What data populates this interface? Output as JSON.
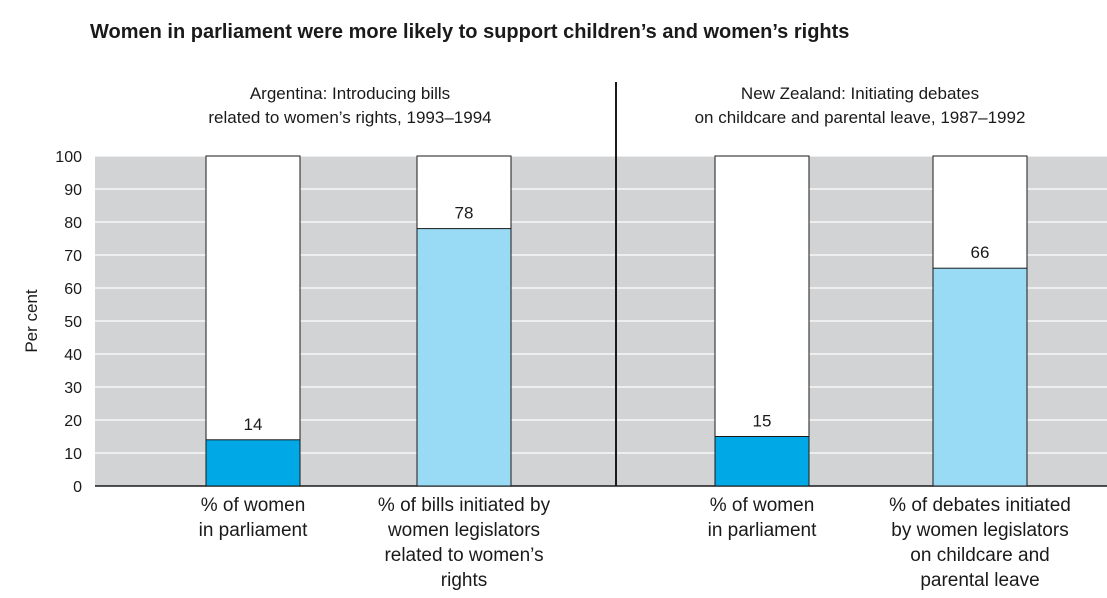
{
  "chart_data": {
    "type": "bar",
    "title": "Women in parliament were more likely to support children’s and women’s rights",
    "ylabel": "Per cent",
    "ylim": [
      0,
      100
    ],
    "yticks": [
      0,
      10,
      20,
      30,
      40,
      50,
      60,
      70,
      80,
      90,
      100
    ],
    "ytick_labels": [
      "0",
      "10",
      "20",
      "30",
      "40",
      "50",
      "60",
      "70",
      "80",
      "90",
      "100"
    ],
    "grid": true,
    "colors": {
      "women_share": "#00a9e6",
      "initiated_share": "#99daf5",
      "remainder": "#ffffff",
      "plot_bg": "#d1d3d4"
    },
    "panels": [
      {
        "title_lines": [
          "Argentina: Introducing bills",
          "related to women’s rights, 1993–1994"
        ],
        "bars": [
          {
            "label_lines": [
              "% of women",
              "in parliament"
            ],
            "value": 14,
            "value_label": "14",
            "max": 100,
            "color_key": "women_share"
          },
          {
            "label_lines": [
              "% of bills initiated by",
              "women legislators",
              "related to women’s",
              "rights"
            ],
            "value": 78,
            "value_label": "78",
            "max": 100,
            "color_key": "initiated_share"
          }
        ]
      },
      {
        "title_lines": [
          "New Zealand: Initiating debates",
          "on childcare and parental leave, 1987–1992"
        ],
        "bars": [
          {
            "label_lines": [
              "% of women",
              "in parliament"
            ],
            "value": 15,
            "value_label": "15",
            "max": 100,
            "color_key": "women_share"
          },
          {
            "label_lines": [
              "% of debates initiated",
              "by women legislators",
              "on childcare and",
              "parental leave"
            ],
            "value": 66,
            "value_label": "66",
            "max": 100,
            "color_key": "initiated_share"
          }
        ]
      }
    ]
  }
}
